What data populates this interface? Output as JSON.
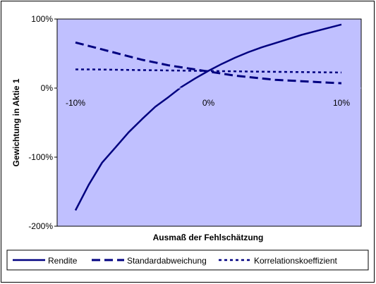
{
  "chart_data": {
    "type": "line",
    "title": "",
    "xlabel": "Ausmaß der Fehlschätzung",
    "ylabel": "Gewichtung in Aktie 1",
    "ylim": [
      -200,
      100
    ],
    "xlim": [
      -10,
      10
    ],
    "y_ticks": [
      "100%",
      "0%",
      "-100%",
      "-200%"
    ],
    "y_tick_values": [
      100,
      0,
      -100,
      -200
    ],
    "x_ticks": [
      "-10%",
      "0%",
      "10%"
    ],
    "x_tick_values": [
      -10,
      0,
      10
    ],
    "grid": false,
    "legend_position": "bottom",
    "colors": {
      "plot_bg": "#C0C0FF",
      "line": "#000080"
    },
    "series": [
      {
        "name": "Rendite",
        "style": "solid",
        "x": [
          -10,
          -9,
          -8,
          -7,
          -6,
          -5,
          -4,
          -3,
          -2,
          -1,
          0,
          1,
          2,
          3,
          4,
          5,
          6,
          7,
          8,
          9,
          10
        ],
        "y": [
          -177,
          -140,
          -108,
          -86,
          -64,
          -45,
          -27,
          -13,
          2,
          14,
          25,
          35,
          44,
          52,
          59,
          65,
          71,
          77,
          82,
          87,
          92
        ]
      },
      {
        "name": "Standardabweichung",
        "style": "dash",
        "x": [
          -10,
          -9,
          -8,
          -7,
          -6,
          -5,
          -4,
          -3,
          -2,
          -1,
          0,
          1,
          2,
          3,
          4,
          5,
          6,
          7,
          8,
          9,
          10
        ],
        "y": [
          66,
          61,
          56,
          51,
          46,
          41,
          37,
          33,
          30,
          27,
          24,
          21,
          18,
          16,
          14,
          12,
          11,
          10,
          9,
          8,
          7
        ]
      },
      {
        "name": "Korrelationskoeffizient",
        "style": "dot",
        "x": [
          -10,
          -9,
          -8,
          -7,
          -6,
          -5,
          -4,
          -3,
          -2,
          -1,
          0,
          1,
          2,
          3,
          4,
          5,
          6,
          7,
          8,
          9,
          10
        ],
        "y": [
          27,
          27,
          26.8,
          26.5,
          26.3,
          26,
          25.8,
          25.5,
          25.3,
          25,
          24.8,
          24.5,
          24.3,
          24,
          23.8,
          23.6,
          23.4,
          23.2,
          23,
          22.8,
          22.6
        ]
      }
    ]
  }
}
